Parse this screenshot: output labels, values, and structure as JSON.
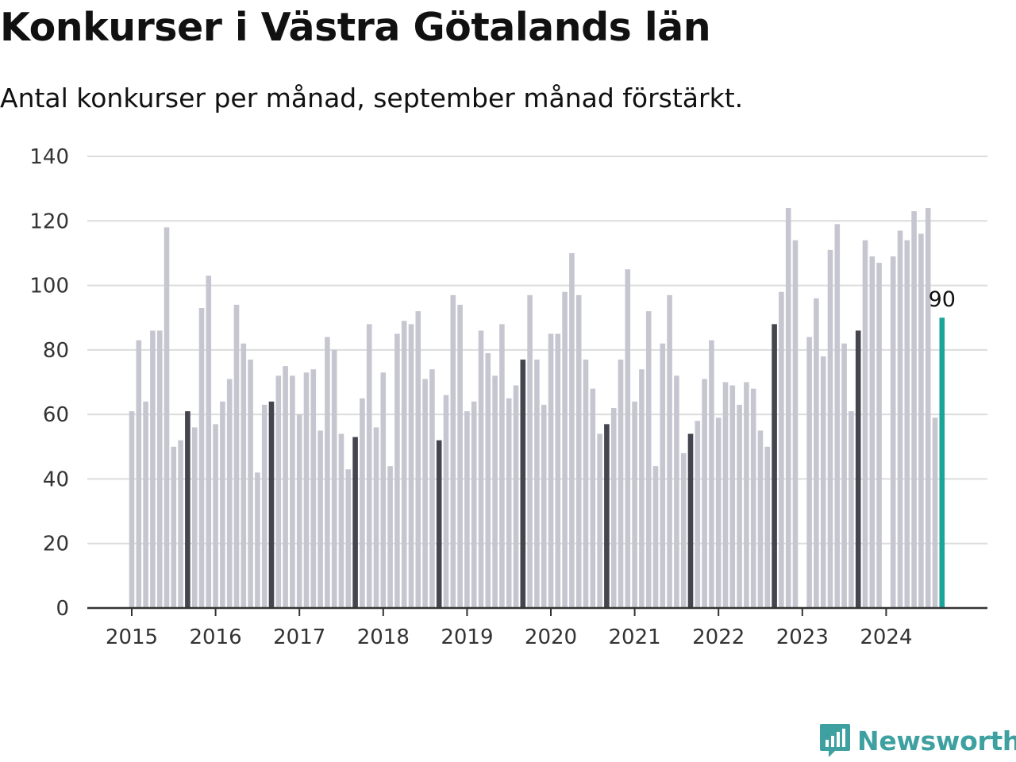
{
  "title": "Konkurser i Västra Götalands län",
  "subtitle": "Antal konkurser per månad, september månad förstärkt.",
  "brand": {
    "name": "Newsworthy",
    "icon": "bar-chart-speech-bubble-icon",
    "color": "#3ea0a0"
  },
  "colors": {
    "normal": "#c6c6d0",
    "september": "#45454f",
    "latest": "#1aa49a",
    "grid": "#dcdcdc",
    "axis": "#333333"
  },
  "chart_data": {
    "type": "bar",
    "title": "Konkurser i Västra Götalands län",
    "subtitle": "Antal konkurser per månad, september månad förstärkt.",
    "xlabel": "",
    "ylabel": "",
    "ylim": [
      0,
      140
    ],
    "yticks": [
      0,
      20,
      40,
      60,
      80,
      100,
      120,
      140
    ],
    "xticks": [
      "2015",
      "2016",
      "2017",
      "2018",
      "2019",
      "2020",
      "2021",
      "2022",
      "2023",
      "2024"
    ],
    "grid": true,
    "start": "2015-01",
    "highlight_month": "september",
    "latest_label": "90",
    "values": [
      61,
      83,
      64,
      86,
      86,
      118,
      50,
      52,
      61,
      56,
      93,
      103,
      57,
      64,
      71,
      94,
      82,
      77,
      42,
      63,
      64,
      72,
      75,
      72,
      60,
      73,
      74,
      55,
      84,
      80,
      54,
      43,
      53,
      65,
      88,
      56,
      73,
      44,
      85,
      89,
      88,
      92,
      71,
      74,
      52,
      66,
      97,
      94,
      61,
      64,
      86,
      79,
      72,
      88,
      65,
      69,
      77,
      97,
      77,
      63,
      85,
      85,
      98,
      110,
      97,
      77,
      68,
      54,
      57,
      62,
      77,
      105,
      64,
      74,
      92,
      44,
      82,
      97,
      72,
      48,
      54,
      58,
      71,
      83,
      59,
      70,
      69,
      63,
      70,
      68,
      55,
      50,
      88,
      98,
      124,
      114,
      null,
      84,
      96,
      78,
      111,
      119,
      82,
      61,
      86,
      114,
      109,
      107,
      null,
      109,
      117,
      114,
      123,
      116,
      124,
      59,
      90
    ]
  }
}
